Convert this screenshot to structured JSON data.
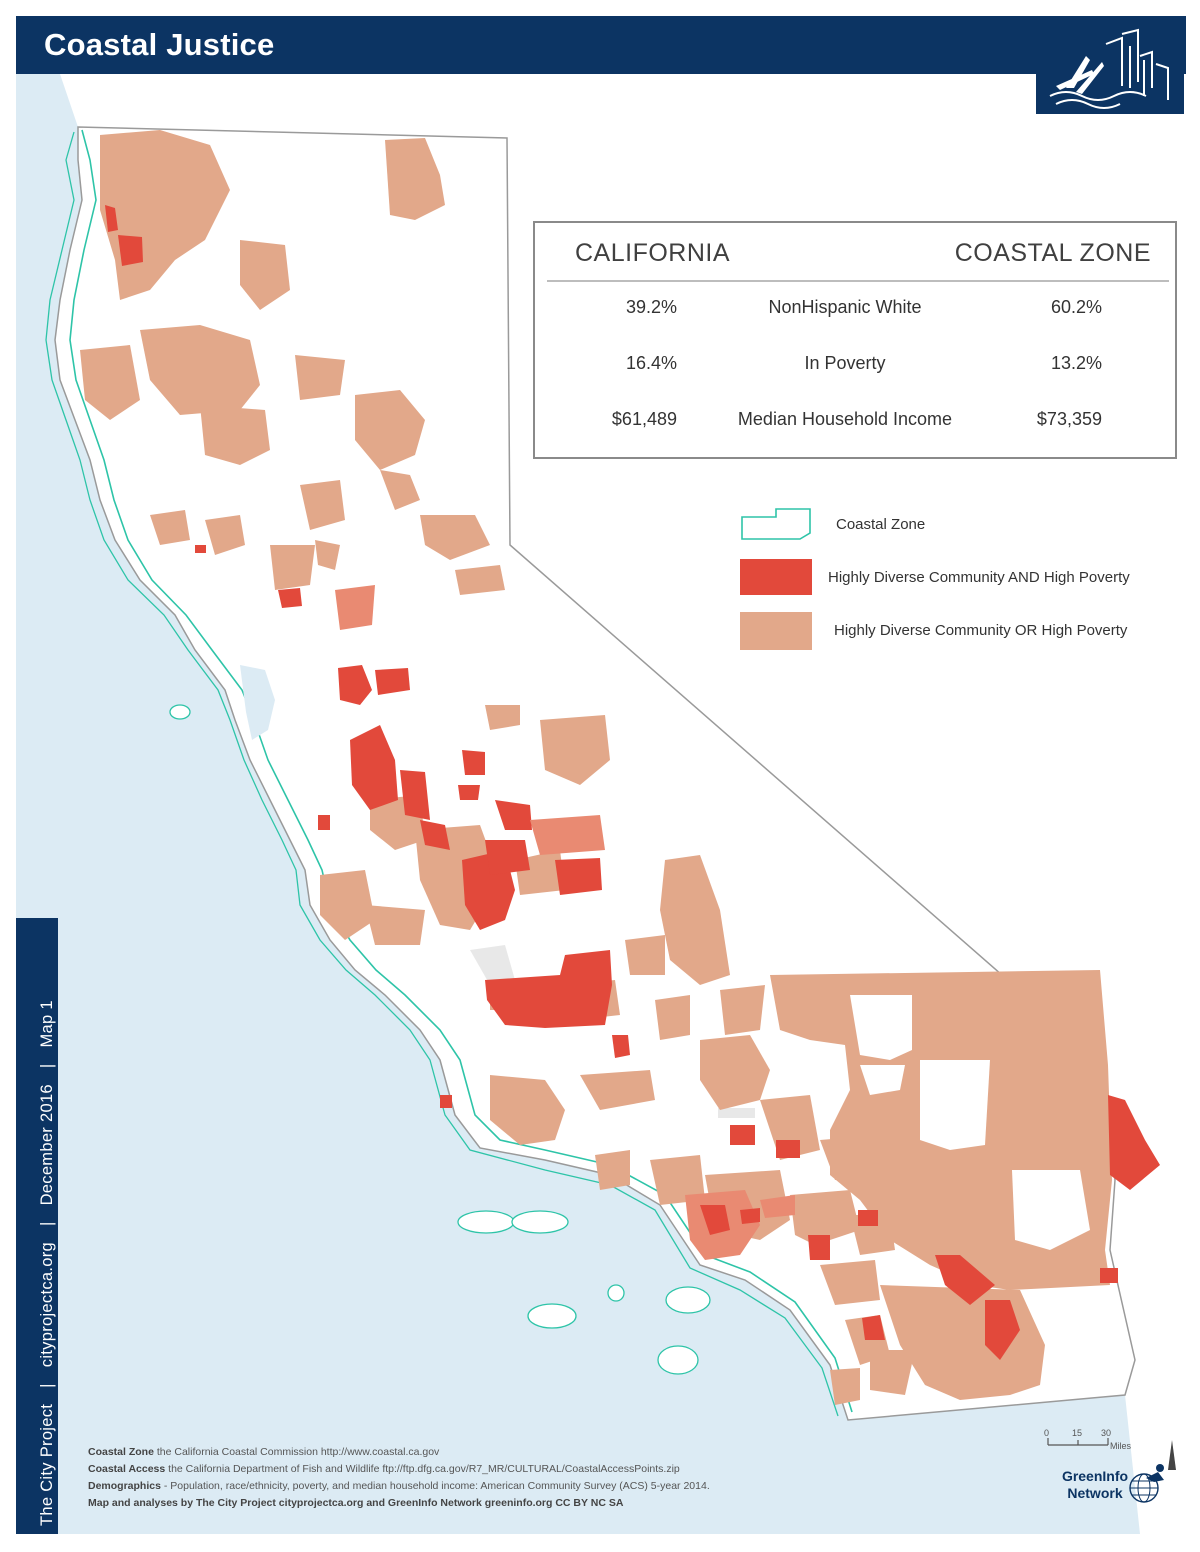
{
  "header": {
    "title": "Coastal Justice"
  },
  "sidebar": {
    "org": "The City Project",
    "url": "cityprojectca.org",
    "date": "December 2016",
    "map_label": "Map 1",
    "separator": "|"
  },
  "stats": {
    "col_left": "CALIFORNIA",
    "col_right": "COASTAL ZONE",
    "rows": [
      {
        "california": "39.2%",
        "label": "NonHispanic White",
        "coastal": "60.2%"
      },
      {
        "california": "16.4%",
        "label": "In Poverty",
        "coastal": "13.2%"
      },
      {
        "california": "$61,489",
        "label": "Median Household Income",
        "coastal": "$73,359"
      }
    ]
  },
  "legend": {
    "items": [
      {
        "label": "Coastal Zone",
        "color": "#2ec4a8"
      },
      {
        "label": "Highly Diverse Community AND High Poverty",
        "color": "#e2493b"
      },
      {
        "label": "Highly Diverse Community OR High Poverty",
        "color": "#e2a88a"
      }
    ]
  },
  "scale": {
    "ticks": [
      "0",
      "15",
      "30"
    ],
    "unit": "Miles"
  },
  "credits": [
    {
      "head": "Coastal Zone",
      "text": " the California Coastal Commission http://www.coastal.ca.gov"
    },
    {
      "head": "Coastal Access",
      "text": "  the California Department of Fish and Wildlife ftp://ftp.dfg.ca.gov/R7_MR/CULTURAL/CoastalAccessPoints.zip"
    },
    {
      "head": "Demographics",
      "text": " - Population, race/ethnicity, poverty, and median household income: American Community Survey (ACS) 5-year 2014."
    },
    {
      "head": "Map and analyses by The City Project cityprojectca.org and GreenInfo Network greeninfo.org CC BY NC SA",
      "text": ""
    }
  ],
  "branding": {
    "greeninfo_line1": "GreenInfo",
    "greeninfo_line2": "Network"
  },
  "colors": {
    "navy": "#0c3463",
    "ocean": "#dcebf4",
    "high": "#e2493b",
    "moderate": "#e2a88a",
    "coast": "#2ec4a8"
  }
}
